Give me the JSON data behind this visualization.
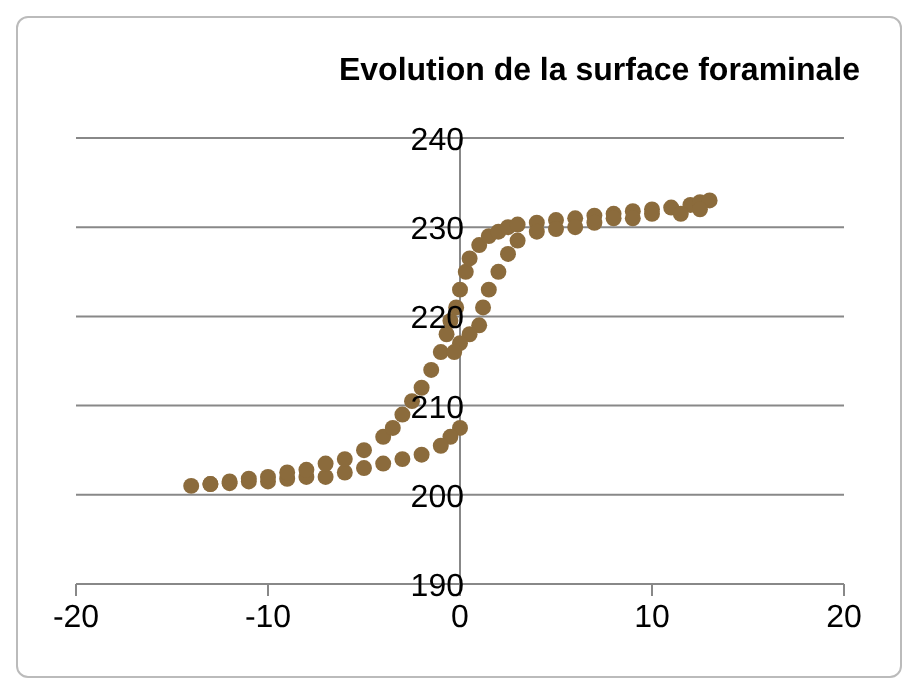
{
  "chart_data": {
    "type": "scatter",
    "title": "Evolution de la surface foraminale",
    "x": [
      0,
      -0.5,
      -1,
      -2,
      -3,
      -4,
      -5,
      -6,
      -7,
      -8,
      -9,
      -10,
      -11,
      -12,
      -13,
      -14,
      -13,
      -12,
      -11,
      -10,
      -9,
      -8,
      -7,
      -6,
      -5,
      -4,
      -3.5,
      -3,
      -2.5,
      -2,
      -1.5,
      -1,
      -0.7,
      -0.5,
      -0.2,
      0,
      0.3,
      0.5,
      1,
      1.5,
      2,
      2.5,
      3,
      4,
      5,
      6,
      7,
      8,
      9,
      10,
      11,
      12,
      12.5,
      13,
      12.5,
      11.5,
      10,
      9,
      8,
      7,
      6,
      5,
      4,
      3,
      2.5,
      2,
      1.5,
      1.2,
      1,
      0.5,
      0,
      -0.3
    ],
    "series": [
      {
        "color": "#8b6b3c",
        "values": [
          207.5,
          206.5,
          205.5,
          204.5,
          204,
          203.5,
          203,
          202.5,
          202,
          202,
          201.8,
          201.5,
          201.5,
          201.3,
          201.2,
          201,
          201.2,
          201.5,
          201.8,
          202,
          202.5,
          202.8,
          203.5,
          204,
          205,
          206.5,
          207.5,
          209,
          210.5,
          212,
          214,
          216,
          218,
          219.5,
          221,
          223,
          225,
          226.5,
          228,
          229,
          229.5,
          230,
          230.3,
          230.5,
          230.8,
          231,
          231.3,
          231.5,
          231.8,
          232,
          232.2,
          232.5,
          232.8,
          233,
          232,
          231.5,
          231.5,
          231,
          231,
          230.5,
          230,
          229.8,
          229.5,
          228.5,
          227,
          225,
          223,
          221,
          219,
          218,
          217,
          216
        ]
      }
    ],
    "xlim": [
      -20,
      20
    ],
    "xticks": [
      -20,
      -10,
      0,
      10,
      20
    ],
    "ylim": [
      190,
      240
    ],
    "yticks": [
      190,
      200,
      210,
      220,
      230,
      240
    ],
    "grid": "y",
    "marker": "circle"
  }
}
